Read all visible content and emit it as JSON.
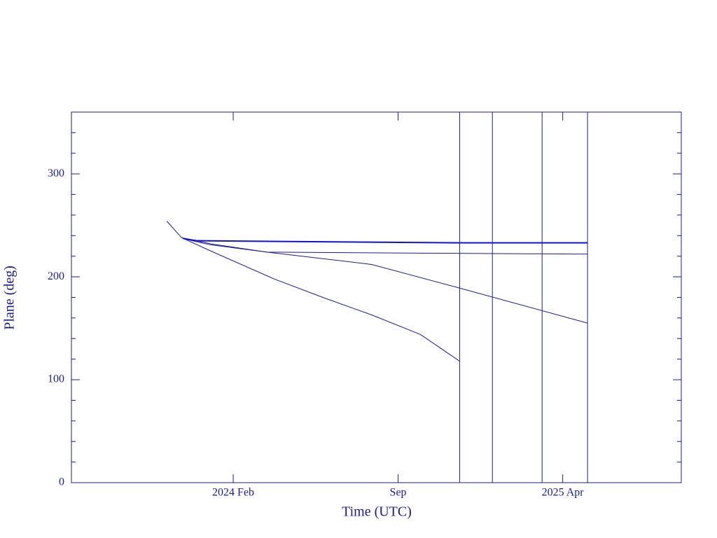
{
  "chart_data": {
    "type": "line",
    "x_label": "Time (UTC)",
    "y_label": "Plane (deg)",
    "xlim": [
      2023.51,
      2025.67
    ],
    "ylim": [
      0,
      360
    ],
    "xticks": [
      {
        "value": 2024.083,
        "label": "2024 Feb"
      },
      {
        "value": 2024.667,
        "label": "Sep"
      },
      {
        "value": 2025.25,
        "label": "2025 Apr"
      }
    ],
    "yticks": [
      0,
      100,
      200,
      300
    ],
    "y_minor_ticks": [
      20,
      40,
      60,
      80,
      120,
      140,
      160,
      180,
      220,
      240,
      260,
      280,
      320,
      340
    ],
    "series": [
      {
        "color": "#1c1c8a",
        "x": [
          2023.848,
          2023.9,
          2024.004,
          2024.227,
          2024.4,
          2024.573,
          2024.746,
          2024.885
        ],
        "values": [
          254,
          238,
          225,
          198,
          180,
          163,
          144,
          118
        ]
      },
      {
        "color": "#1c1c8a",
        "x": [
          2023.9,
          2024.004,
          2024.202,
          2024.573,
          2024.885,
          2025.338
        ],
        "values": [
          238,
          232,
          224,
          212,
          189,
          155
        ]
      },
      {
        "color": "#1c1c8a",
        "x": [
          2023.905,
          2024.004,
          2024.202,
          2024.746,
          2025.338
        ],
        "values": [
          237,
          231,
          224,
          223,
          222
        ]
      },
      {
        "color": "#1010e0",
        "x": [
          2023.91,
          2023.955,
          2024.885,
          2025.338
        ],
        "values": [
          237,
          235,
          233,
          233
        ]
      }
    ],
    "vlines": [
      2024.885,
      2025.001,
      2025.177,
      2025.338
    ],
    "vline_color": "#1c1c8a"
  }
}
